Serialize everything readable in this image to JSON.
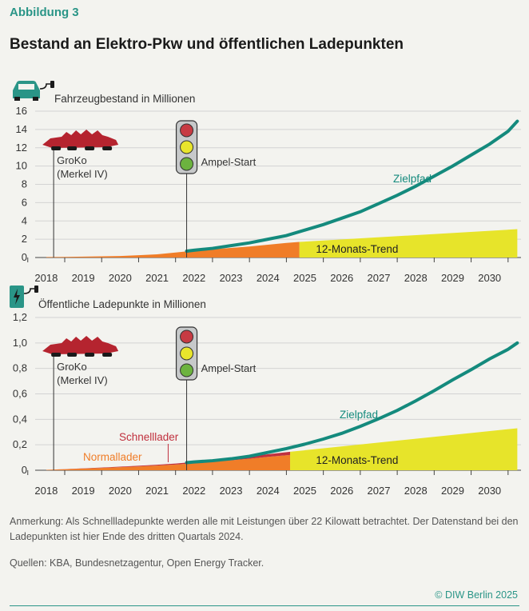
{
  "header": {
    "kicker": "Abbildung 3",
    "title": "Bestand an Elektro-Pkw und öffentlichen Ladepunkten"
  },
  "colors": {
    "accent": "#2a9587",
    "zielpfad": "#148a7d",
    "normal": "#f07d28",
    "schnell": "#c0303e",
    "trend": "#e7e42a",
    "grid": "#d3d3d3",
    "croc": "#b5242f"
  },
  "chart_data": [
    {
      "type": "area",
      "ylabel": "Fahrzeugbestand in Millionen",
      "ylim": [
        0,
        16
      ],
      "yticks": [
        "0",
        "2",
        "4",
        "6",
        "8",
        "10",
        "12",
        "14",
        "16"
      ],
      "xlim": [
        2017.7,
        2030.85
      ],
      "xticks": [
        "2018",
        "2019",
        "2020",
        "2021",
        "2022",
        "2023",
        "2024",
        "2025",
        "2026",
        "2027",
        "2028",
        "2029",
        "2030"
      ],
      "groko_label": [
        "GroKo",
        "(Merkel IV)"
      ],
      "groko_x": 2018.2,
      "ampel_label": "Ampel-Start",
      "ampel_x": 2021.8,
      "series": [
        {
          "name": "",
          "kind": "area",
          "x": [
            2018,
            2018.5,
            2019,
            2019.5,
            2020,
            2020.5,
            2021,
            2021.5,
            2022,
            2022.5,
            2023,
            2023.5,
            2024,
            2024.5,
            2024.85
          ],
          "values": [
            0.05,
            0.07,
            0.1,
            0.13,
            0.16,
            0.25,
            0.35,
            0.55,
            0.75,
            0.9,
            1.05,
            1.2,
            1.4,
            1.6,
            1.7
          ]
        },
        {
          "name": "12-Monats-Trend",
          "kind": "trend",
          "x": [
            2024.85,
            2030.75
          ],
          "values": [
            1.7,
            3.1
          ]
        },
        {
          "name": "Zielpfad",
          "kind": "line",
          "x": [
            2021.8,
            2022,
            2022.5,
            2023,
            2023.5,
            2024,
            2024.5,
            2025,
            2025.5,
            2026,
            2026.5,
            2027,
            2027.5,
            2028,
            2028.5,
            2029,
            2029.5,
            2030,
            2030.5,
            2030.75
          ],
          "values": [
            0.7,
            0.8,
            1.0,
            1.3,
            1.6,
            2.0,
            2.4,
            3.0,
            3.6,
            4.3,
            5.0,
            5.9,
            6.8,
            7.8,
            8.9,
            10.0,
            11.2,
            12.4,
            13.8,
            14.9
          ]
        }
      ]
    },
    {
      "type": "area",
      "ylabel": "Öffentliche Ladepunkte in Millionen",
      "ylim": [
        0,
        1.2
      ],
      "yticks": [
        "0",
        "0,2",
        "0,4",
        "0,6",
        "0,8",
        "1,0",
        "1,2"
      ],
      "xlim": [
        2017.7,
        2030.85
      ],
      "xticks": [
        "2018",
        "2019",
        "2020",
        "2021",
        "2022",
        "2023",
        "2024",
        "2025",
        "2026",
        "2027",
        "2028",
        "2029",
        "2030"
      ],
      "groko_label": [
        "GroKo",
        "(Merkel IV)"
      ],
      "groko_x": 2018.2,
      "ampel_label": "Ampel-Start",
      "ampel_x": 2021.8,
      "series": [
        {
          "name": "Normallader",
          "kind": "area",
          "x": [
            2018,
            2018.5,
            2019,
            2019.5,
            2020,
            2020.5,
            2021,
            2021.5,
            2022,
            2022.5,
            2023,
            2023.5,
            2024,
            2024.6
          ],
          "values": [
            0.003,
            0.008,
            0.013,
            0.018,
            0.024,
            0.03,
            0.037,
            0.045,
            0.055,
            0.066,
            0.078,
            0.09,
            0.105,
            0.12
          ]
        },
        {
          "name": "Schnelllader",
          "kind": "area-top",
          "x": [
            2018,
            2018.5,
            2019,
            2019.5,
            2020,
            2020.5,
            2021,
            2021.5,
            2022,
            2022.5,
            2023,
            2023.5,
            2024,
            2024.6
          ],
          "values": [
            0.0005,
            0.001,
            0.002,
            0.003,
            0.004,
            0.005,
            0.006,
            0.008,
            0.01,
            0.012,
            0.015,
            0.018,
            0.021,
            0.025
          ]
        },
        {
          "name": "12-Monats-Trend",
          "kind": "trend",
          "x": [
            2024.6,
            2030.75
          ],
          "values": [
            0.145,
            0.33
          ]
        },
        {
          "name": "Zielpfad",
          "kind": "line",
          "x": [
            2021.8,
            2022,
            2022.5,
            2023,
            2023.5,
            2024,
            2024.5,
            2025,
            2025.5,
            2026,
            2026.5,
            2027,
            2027.5,
            2028,
            2028.5,
            2029,
            2029.5,
            2030,
            2030.5,
            2030.75
          ],
          "values": [
            0.06,
            0.065,
            0.075,
            0.09,
            0.11,
            0.14,
            0.17,
            0.205,
            0.245,
            0.29,
            0.345,
            0.405,
            0.47,
            0.545,
            0.625,
            0.71,
            0.79,
            0.875,
            0.95,
            1.0
          ]
        }
      ]
    }
  ],
  "labels": {
    "zielpfad": "Zielpfad",
    "trend": "12-Monats-Trend",
    "schnell": "Schnelllader",
    "normal": "Normallader"
  },
  "icons": {
    "top": "electric-car-icon",
    "bottom": "charging-station-icon"
  },
  "footer": {
    "note": "Anmerkung: Als Schnellladepunkte werden alle mit Leistungen über 22 Kilowatt betrachtet. Der Datenstand bei den Ladepunkten ist hier Ende des dritten Quartals 2024.",
    "sources": "Quellen: KBA, Bundesnetzagentur, Open Energy Tracker.",
    "copyright": "© DIW Berlin 2025"
  }
}
